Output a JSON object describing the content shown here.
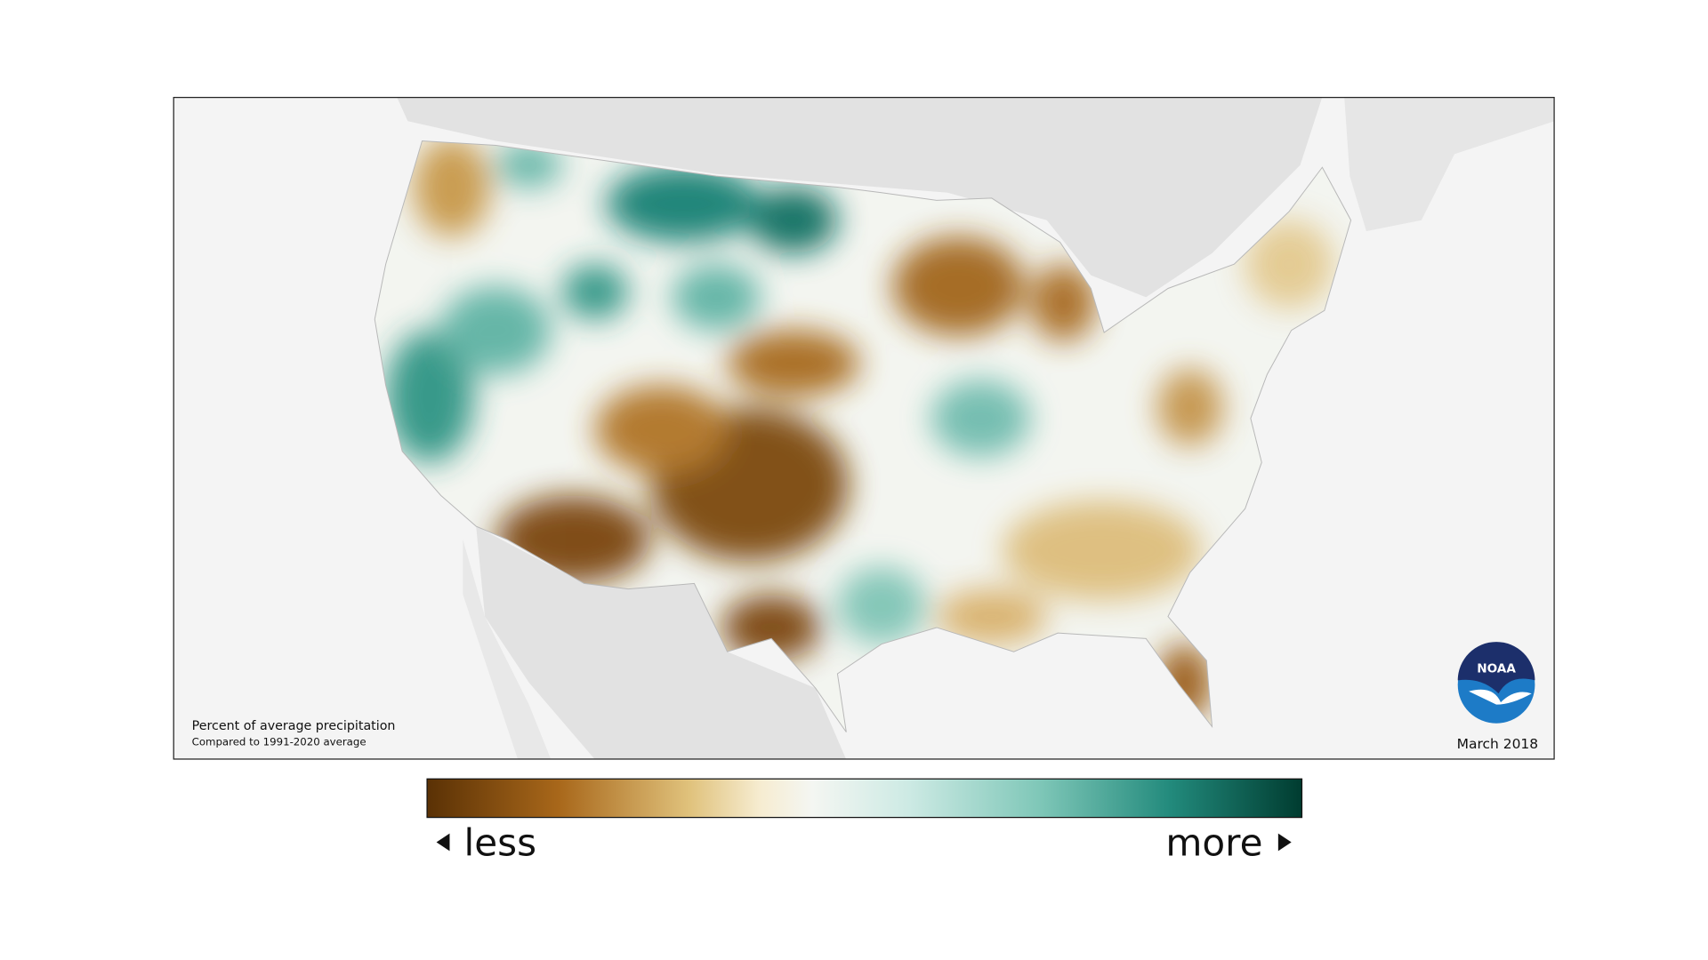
{
  "map": {
    "caption_title": "Percent of average precipitation",
    "caption_subtitle": "Compared to 1991-2020 average",
    "date": "March 2018",
    "logo_text": "NOAA"
  },
  "legend": {
    "low_label": "less",
    "high_label": "more"
  }
}
